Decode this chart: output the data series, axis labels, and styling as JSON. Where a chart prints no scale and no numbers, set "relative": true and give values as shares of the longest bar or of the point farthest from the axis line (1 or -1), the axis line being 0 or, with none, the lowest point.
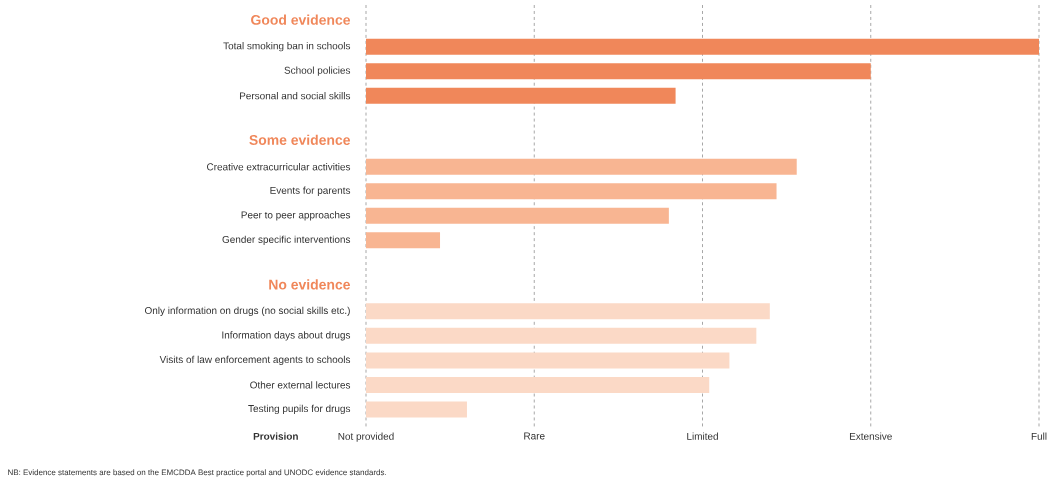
{
  "chart_data": {
    "type": "bar",
    "orientation": "horizontal",
    "relative": true,
    "xlabel": "Provision",
    "categories": [
      "Good evidence",
      "Total smoking ban in schools",
      "School policies",
      "Personal and social skills",
      "Some evidence",
      "Creative extracurricular activities",
      "Events for parents",
      "Peer to peer approaches",
      "Gender specific interventions",
      "No evidence",
      "Only information on drugs (no social skills etc.)",
      "Information days about drugs",
      "Visits of law enforcement agents to schools",
      "Other external lectures",
      "Testing pupils for drugs"
    ],
    "series": [
      {
        "color": "#f0875a",
        "values": [
          null,
          1.0,
          0.75,
          0.46,
          null,
          null,
          null,
          null,
          null,
          null,
          null,
          null,
          null,
          null,
          null
        ]
      },
      {
        "color": "#f8b592",
        "values": [
          null,
          null,
          null,
          null,
          null,
          0.64,
          0.61,
          0.45,
          0.11,
          null,
          null,
          null,
          null,
          null,
          null
        ]
      },
      {
        "color": "#fbd9c6",
        "values": [
          null,
          null,
          null,
          null,
          null,
          null,
          null,
          null,
          null,
          null,
          0.6,
          0.58,
          0.54,
          0.51,
          0.15
        ]
      }
    ],
    "ref_lines": [
      {
        "axis": "x",
        "value": 0,
        "label": "Not provided",
        "line_style": "dashed"
      },
      {
        "axis": "x",
        "value": 0.25,
        "label": "Rare",
        "line_style": "dashed"
      },
      {
        "axis": "x",
        "value": 0.5,
        "label": "Limited",
        "line_style": "dashed"
      },
      {
        "axis": "x",
        "value": 0.75,
        "label": "Extensive",
        "line_style": "dashed"
      },
      {
        "axis": "x",
        "value": 1,
        "label": "Full",
        "line_style": "dashed"
      }
    ],
    "annotations": [
      "NB: Evidence statements are based on the EMCDDA Best practice portal and UNODC evidence standards."
    ]
  }
}
